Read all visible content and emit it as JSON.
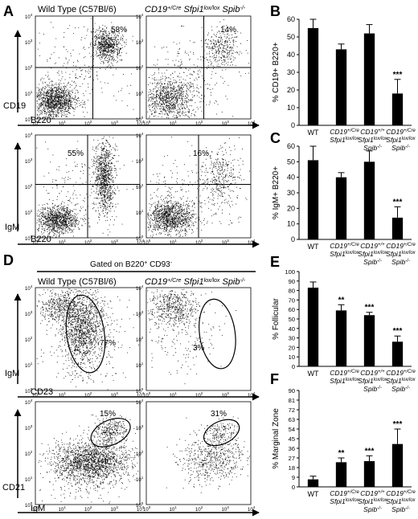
{
  "panel_letters": [
    "A",
    "B",
    "C",
    "D",
    "E",
    "F"
  ],
  "genotypes": {
    "wt_header": "Wild Type (C57Bl/6)",
    "ko_header": [
      "CD19",
      "+/Cre",
      " Sfpi1",
      "lox/lox",
      " Spib",
      "-/-"
    ]
  },
  "flow": {
    "axis_ticks": [
      "10",
      "10",
      "10",
      "10",
      "10"
    ],
    "tick_exponents": [
      "0",
      "1",
      "2",
      "3",
      "4"
    ],
    "A_top": {
      "ylabel": "CD19",
      "xlabel": "B220",
      "wt_pct": "58%",
      "ko_pct": "14%"
    },
    "A_bottom": {
      "ylabel": "IgM",
      "xlabel": "B220",
      "wt_pct": "55%",
      "ko_pct": "16%"
    },
    "D_gate_label": "Gated on B220",
    "D_gate_sup1": "+",
    "D_gate_mid": " CD93",
    "D_gate_sup2": "-",
    "D_top": {
      "ylabel": "IgM",
      "xlabel": "CD23",
      "wt_pct": "77%",
      "ko_pct": "3%"
    },
    "D_bottom": {
      "ylabel": "CD21",
      "xlabel": "IgM",
      "wt_pct": "15%",
      "ko_pct": "31%"
    }
  },
  "bar_categories": [
    {
      "label": "WT"
    },
    {
      "lines": [
        [
          "CD19",
          "+/Cre"
        ],
        [
          "Sfpi1",
          "lox/lox"
        ]
      ]
    },
    {
      "lines": [
        [
          "CD19",
          "+/+"
        ],
        [
          "Sfpi1",
          "lox/lox"
        ],
        [
          "Spib",
          "-/-"
        ]
      ]
    },
    {
      "lines": [
        [
          "CD19",
          "+/Cre"
        ],
        [
          "Sfpi1",
          "lox/lox"
        ],
        [
          "Spib",
          "-/-"
        ]
      ]
    }
  ],
  "chart_data": [
    {
      "panel": "B",
      "type": "bar",
      "ylabel": "% CD19+ B220+",
      "ylim": [
        0,
        60
      ],
      "yticks": [
        0,
        10,
        20,
        30,
        40,
        50,
        60
      ],
      "values": [
        55,
        43,
        52,
        18
      ],
      "errors": [
        5,
        3,
        5,
        8
      ],
      "significance": [
        "",
        "",
        "",
        "***"
      ]
    },
    {
      "panel": "C",
      "type": "bar",
      "ylabel": "% IgM+ B220+",
      "ylim": [
        0,
        60
      ],
      "yticks": [
        0,
        10,
        20,
        30,
        40,
        50,
        60
      ],
      "values": [
        51,
        40,
        50,
        14
      ],
      "errors": [
        9,
        3,
        7,
        7
      ],
      "significance": [
        "",
        "",
        "",
        "***"
      ]
    },
    {
      "panel": "E",
      "type": "bar",
      "ylabel": "% Follicular",
      "ylim": [
        0,
        100
      ],
      "yticks": [
        0,
        10,
        20,
        30,
        40,
        50,
        60,
        70,
        80,
        90,
        100
      ],
      "values": [
        83,
        59,
        54,
        26
      ],
      "errors": [
        6,
        6,
        3,
        6
      ],
      "significance": [
        "",
        "**",
        "***",
        "***"
      ]
    },
    {
      "panel": "F",
      "type": "bar",
      "ylabel": "% Marginal Zone",
      "ylim": [
        0,
        90
      ],
      "yticks": [
        0,
        9,
        18,
        27,
        36,
        45,
        54,
        63,
        72,
        81,
        90
      ],
      "ytick_labels": [
        "0",
        "9",
        "18",
        "27",
        "36",
        "45",
        "54",
        "63",
        "72",
        "81",
        "90"
      ],
      "values": [
        7,
        23,
        24,
        40
      ],
      "errors": [
        3,
        4,
        5,
        14
      ],
      "significance": [
        "",
        "**",
        "***",
        "***"
      ]
    }
  ]
}
